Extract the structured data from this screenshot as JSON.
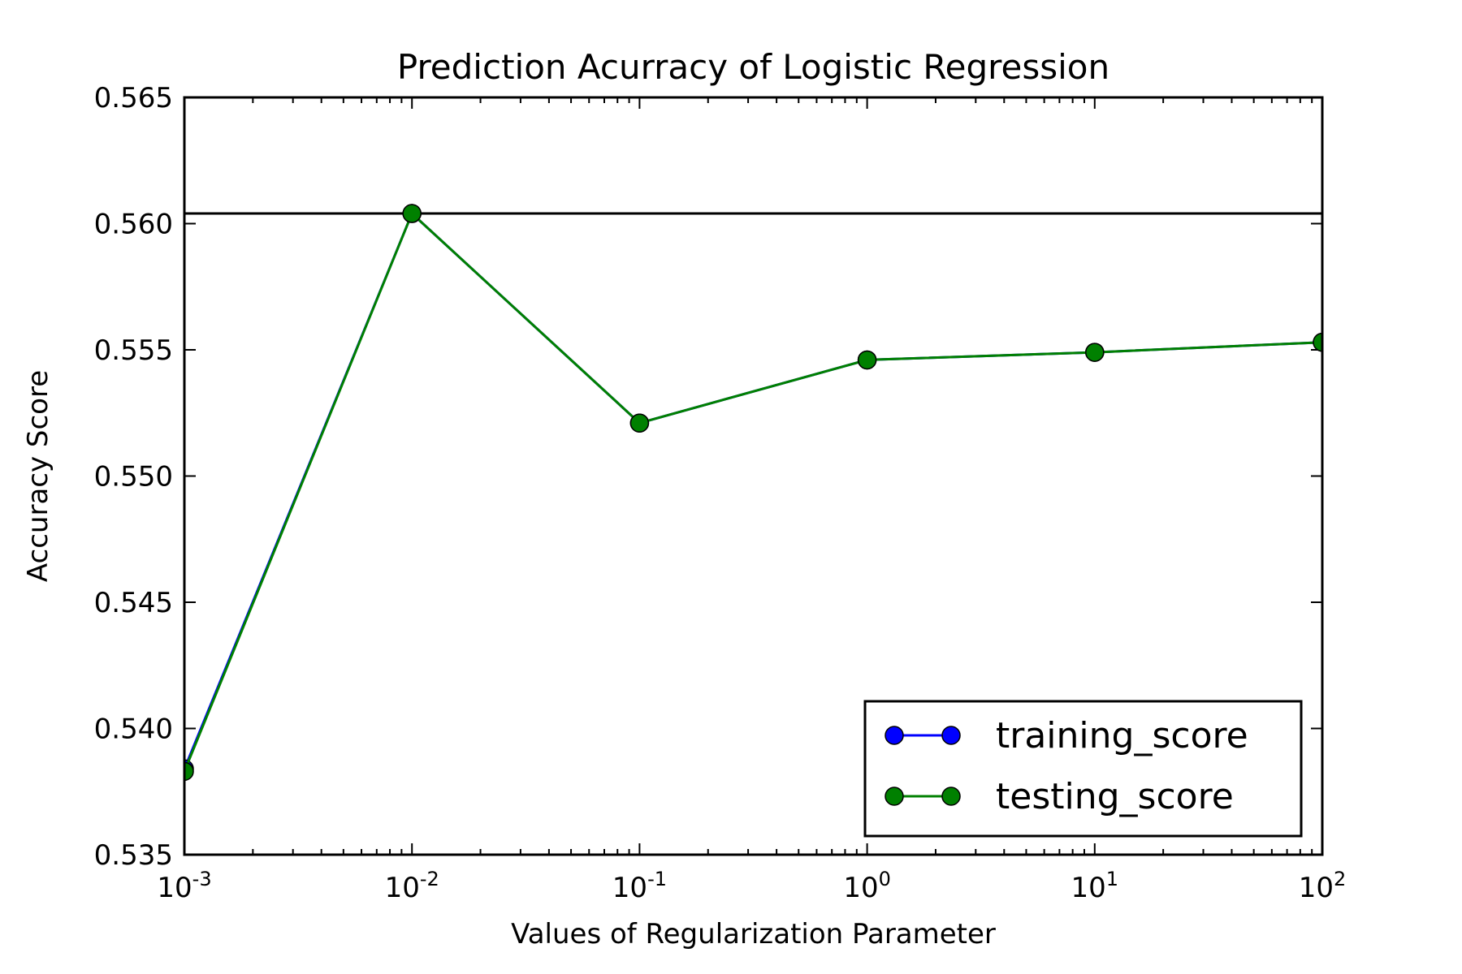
{
  "chart_data": {
    "type": "line",
    "title": "Prediction Acurracy of Logistic Regression",
    "xlabel": "Values of Regularization Parameter",
    "ylabel": "Accuracy Score",
    "x_scale": "log",
    "xlim": [
      0.001,
      100
    ],
    "ylim": [
      0.535,
      0.565
    ],
    "x_ticks": [
      {
        "value": 0.001,
        "base": "10",
        "exp": "-3"
      },
      {
        "value": 0.01,
        "base": "10",
        "exp": "-2"
      },
      {
        "value": 0.1,
        "base": "10",
        "exp": "-1"
      },
      {
        "value": 1,
        "base": "10",
        "exp": "0"
      },
      {
        "value": 10,
        "base": "10",
        "exp": "1"
      },
      {
        "value": 100,
        "base": "10",
        "exp": "2"
      }
    ],
    "y_ticks": [
      {
        "value": 0.535,
        "label": "0.535"
      },
      {
        "value": 0.54,
        "label": "0.540"
      },
      {
        "value": 0.545,
        "label": "0.545"
      },
      {
        "value": 0.55,
        "label": "0.550"
      },
      {
        "value": 0.555,
        "label": "0.555"
      },
      {
        "value": 0.56,
        "label": "0.560"
      },
      {
        "value": 0.565,
        "label": "0.565"
      }
    ],
    "x": [
      0.001,
      0.01,
      0.1,
      1,
      10,
      100
    ],
    "series": [
      {
        "name": "training_score",
        "color": "#0000ff",
        "values": [
          0.5384,
          0.5604,
          0.5521,
          0.5546,
          0.5549,
          0.5553
        ]
      },
      {
        "name": "testing_score",
        "color": "#008000",
        "values": [
          0.5383,
          0.5604,
          0.5521,
          0.5546,
          0.5549,
          0.5553
        ]
      }
    ],
    "hline": {
      "y": 0.5604,
      "color": "#000000"
    },
    "grid": false,
    "legend_position": "lower-right"
  }
}
